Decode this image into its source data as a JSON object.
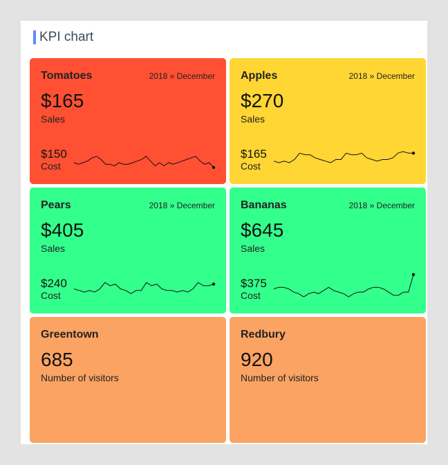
{
  "title": "KPI chart",
  "cards": [
    {
      "name": "Tomatoes",
      "period": "2018 » December",
      "value": "$165",
      "value_label": "Sales",
      "cost": "$150",
      "cost_label": "Cost",
      "color": "#ff5033",
      "sparkline": [
        3,
        2,
        3,
        4,
        6,
        7,
        5,
        2,
        2,
        1,
        3,
        2,
        2,
        3,
        4,
        5,
        7,
        4,
        1,
        3,
        1,
        3,
        2,
        3,
        4,
        5,
        6,
        7,
        4,
        2,
        3,
        0
      ]
    },
    {
      "name": "Apples",
      "period": "2018 » December",
      "value": "$270",
      "value_label": "Sales",
      "cost": "$165",
      "cost_label": "Cost",
      "color": "#ffd633",
      "sparkline": [
        4,
        3,
        4,
        3,
        5,
        9,
        8,
        8,
        6,
        5,
        4,
        3,
        5,
        5,
        9,
        8,
        8,
        9,
        6,
        5,
        4,
        5,
        5,
        6,
        9,
        10,
        9,
        9
      ]
    },
    {
      "name": "Pears",
      "period": "2018 » December",
      "value": "$405",
      "value_label": "Sales",
      "cost": "$240",
      "cost_label": "Cost",
      "color": "#33ff8c",
      "sparkline": [
        5,
        4,
        3,
        4,
        3,
        5,
        9,
        7,
        8,
        5,
        4,
        2,
        4,
        4,
        9,
        7,
        8,
        5,
        4,
        4,
        3,
        4,
        3,
        5,
        9,
        7,
        7,
        8
      ]
    },
    {
      "name": "Bananas",
      "period": "2018 » December",
      "value": "$645",
      "value_label": "Sales",
      "cost": "$375",
      "cost_label": "Cost",
      "color": "#33ff8c",
      "sparkline": [
        5,
        6,
        6,
        5,
        3,
        2,
        0,
        2,
        3,
        2,
        4,
        6,
        4,
        3,
        2,
        0,
        2,
        3,
        3,
        5,
        6,
        6,
        5,
        3,
        1,
        1,
        3,
        3,
        14
      ]
    },
    {
      "name": "Greentown",
      "value": "685",
      "value_label": "Number of visitors",
      "color": "#fba363"
    },
    {
      "name": "Redbury",
      "value": "920",
      "value_label": "Number of visitors",
      "color": "#fba363"
    }
  ]
}
